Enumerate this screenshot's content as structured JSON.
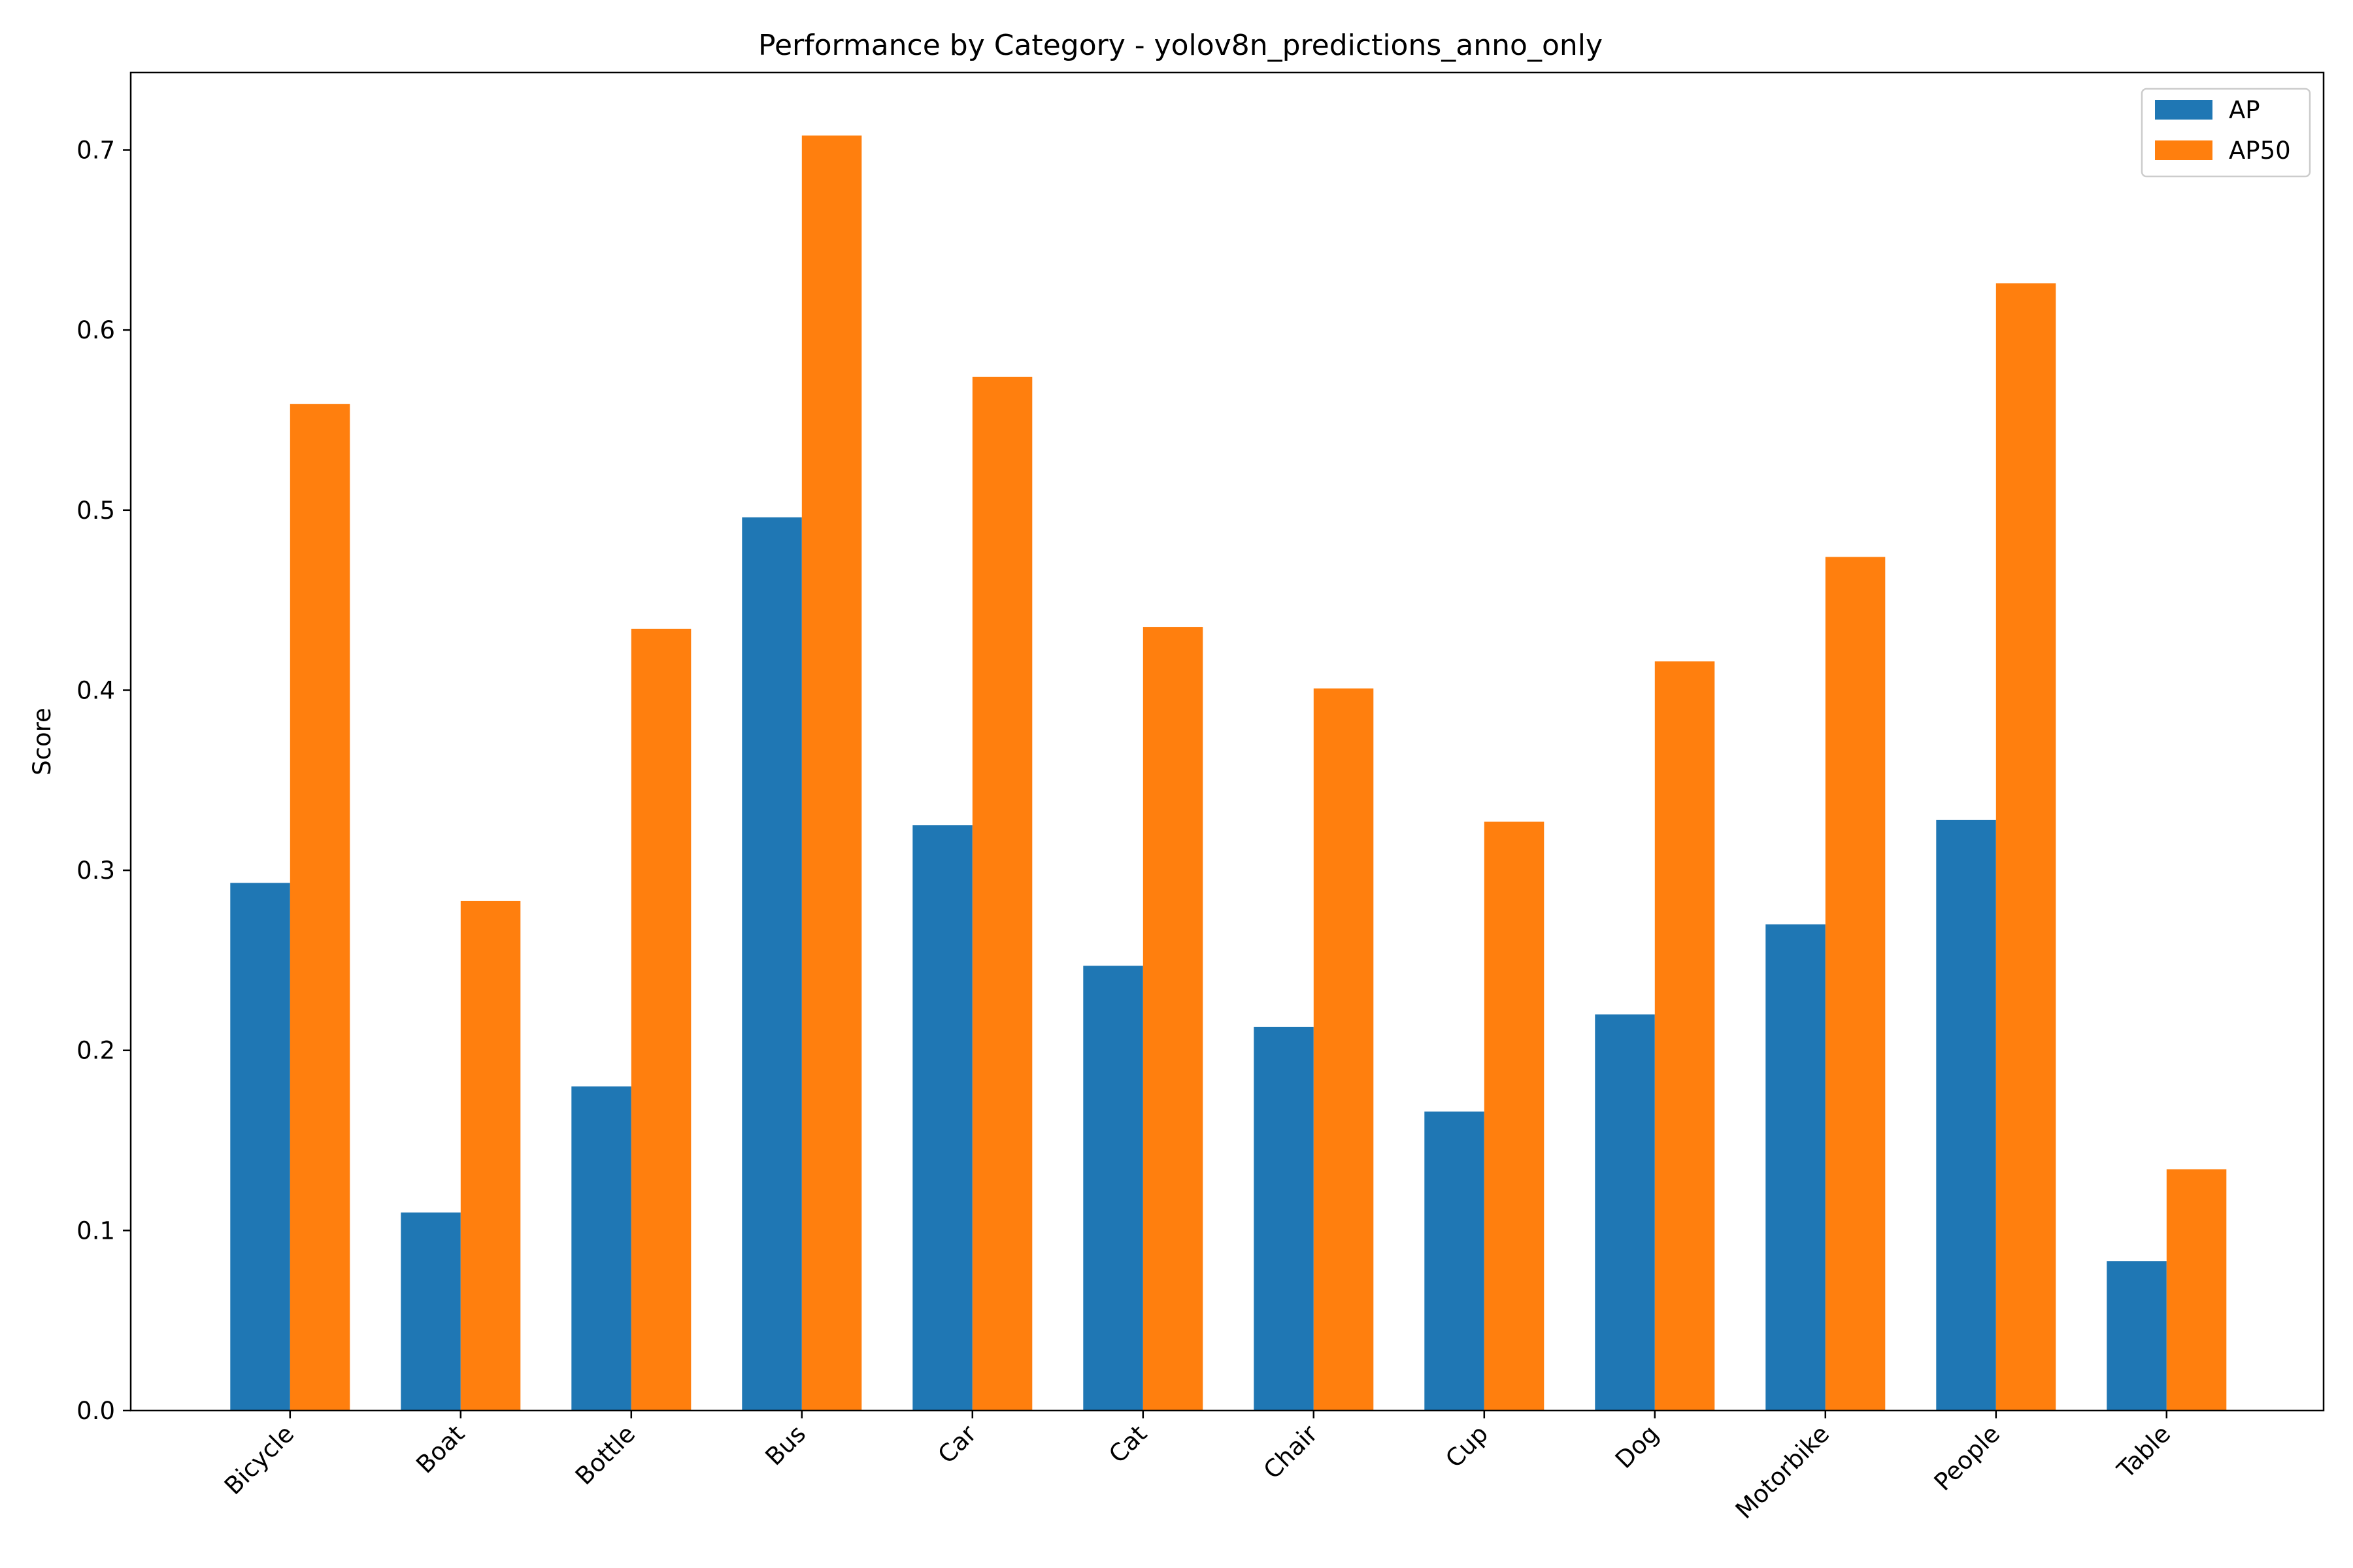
{
  "chart_data": {
    "type": "bar",
    "title": "Performance by Category - yolov8n_predictions_anno_only",
    "xlabel": "",
    "ylabel": "Score",
    "ylim": [
      0,
      0.743
    ],
    "yticks": [
      "0.0",
      "0.1",
      "0.2",
      "0.3",
      "0.4",
      "0.5",
      "0.6",
      "0.7"
    ],
    "categories": [
      "Bicycle",
      "Boat",
      "Bottle",
      "Bus",
      "Car",
      "Cat",
      "Chair",
      "Cup",
      "Dog",
      "Motorbike",
      "People",
      "Table"
    ],
    "series": [
      {
        "name": "AP",
        "color": "#1f77b4",
        "values": [
          0.293,
          0.11,
          0.18,
          0.496,
          0.325,
          0.247,
          0.213,
          0.166,
          0.22,
          0.27,
          0.328,
          0.083
        ]
      },
      {
        "name": "AP50",
        "color": "#ff7f0e",
        "values": [
          0.559,
          0.283,
          0.434,
          0.708,
          0.574,
          0.435,
          0.401,
          0.327,
          0.416,
          0.474,
          0.626,
          0.134
        ]
      }
    ],
    "grid": false,
    "legend": "top-right"
  }
}
